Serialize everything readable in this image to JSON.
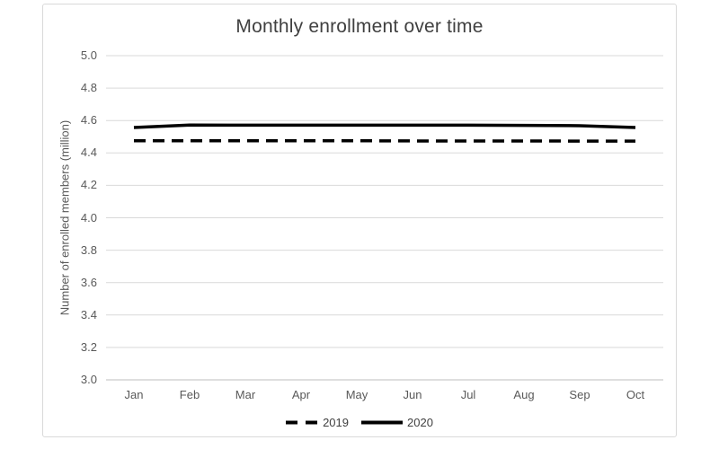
{
  "chart_data": {
    "type": "line",
    "title": "Monthly enrollment over time",
    "xlabel": "",
    "ylabel": "Number of enrolled members (million)",
    "categories": [
      "Jan",
      "Feb",
      "Mar",
      "Apr",
      "May",
      "Jun",
      "Jul",
      "Aug",
      "Sep",
      "Oct"
    ],
    "series": [
      {
        "name": "2019",
        "style": "dashed",
        "color": "#000000",
        "values": [
          4.475,
          4.475,
          4.475,
          4.475,
          4.475,
          4.474,
          4.474,
          4.474,
          4.473,
          4.473
        ]
      },
      {
        "name": "2020",
        "style": "solid",
        "color": "#000000",
        "values": [
          4.557,
          4.572,
          4.571,
          4.571,
          4.571,
          4.571,
          4.571,
          4.57,
          4.568,
          4.557
        ]
      }
    ],
    "ylim": [
      3.0,
      5.0
    ],
    "ytick_step": 0.2,
    "ytick_labels": [
      "3.0",
      "3.2",
      "3.4",
      "3.6",
      "3.8",
      "4.0",
      "4.2",
      "4.4",
      "4.6",
      "4.8",
      "5.0"
    ],
    "grid": true,
    "legend_position": "bottom",
    "colors": {
      "gridline": "#d9d9d9",
      "axis_line": "#bfbfbf",
      "title_text": "#404040",
      "tick_text": "#595959",
      "border": "#d9d9d9"
    }
  }
}
